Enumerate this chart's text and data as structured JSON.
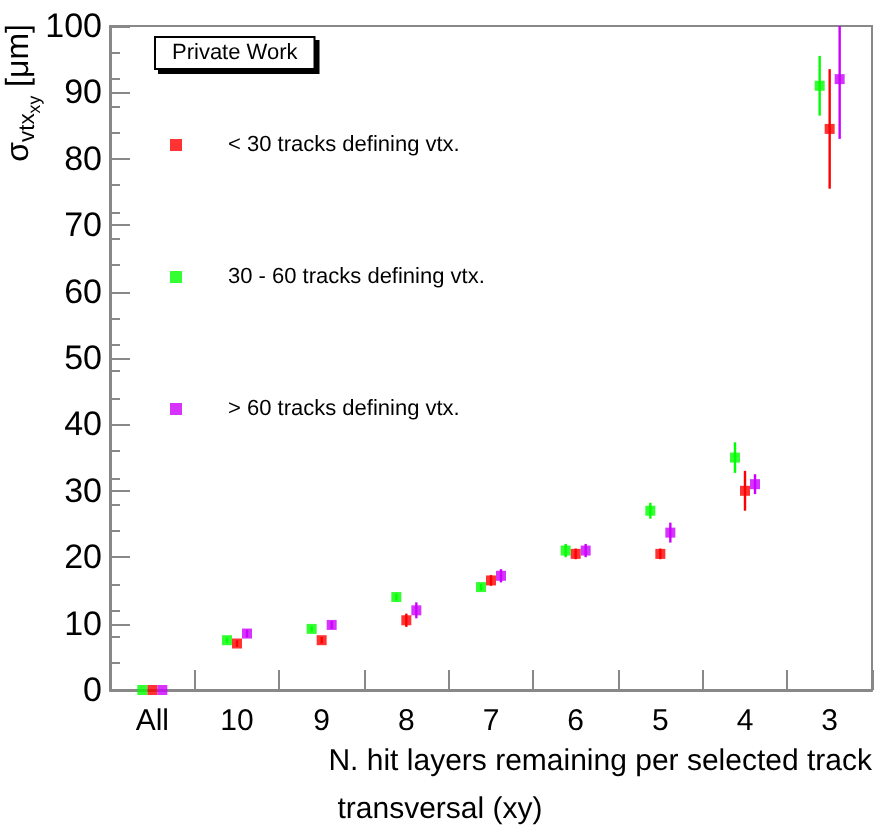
{
  "chart_data": {
    "type": "scatter",
    "title": "transversal (xy)",
    "xlabel": "N. hit layers remaining per selected track",
    "ylabel": "σ$_{vtx}$$_{xy}$ [μm]",
    "annotations": [
      "Private Work"
    ],
    "categories": [
      "All",
      "10",
      "9",
      "8",
      "7",
      "6",
      "5",
      "4",
      "3"
    ],
    "series": [
      {
        "name": "< 30 tracks defining vtx.",
        "color": "#ff0000",
        "values": [
          0,
          7,
          7.5,
          10.5,
          16.5,
          20.5,
          20.5,
          30,
          84.5
        ],
        "errors": [
          null,
          0.5,
          0.5,
          1,
          0.8,
          0.8,
          0.8,
          3,
          9
        ]
      },
      {
        "name": "30 - 60 tracks defining vtx.",
        "color": "#00ff00",
        "values": [
          0,
          7.5,
          9.2,
          14,
          15.5,
          21,
          27,
          35,
          91
        ],
        "errors": [
          null,
          0.4,
          0.4,
          0.5,
          0.5,
          1,
          1.2,
          2.3,
          4.5
        ]
      },
      {
        "name": "> 60 tracks defining vtx.",
        "color": "#cc00ff",
        "values": [
          0,
          8.5,
          9.8,
          12,
          17.2,
          21,
          23.7,
          31,
          92
        ],
        "errors": [
          null,
          0.6,
          0.6,
          1.2,
          1,
          1,
          1.5,
          1.5,
          [
            83,
            100
          ]
        ]
      }
    ],
    "ylim": [
      0,
      100
    ],
    "yticks": [
      0,
      10,
      20,
      30,
      40,
      50,
      60,
      70,
      80,
      90,
      100
    ],
    "grid": false,
    "legend": "top left",
    "marker": "square"
  }
}
